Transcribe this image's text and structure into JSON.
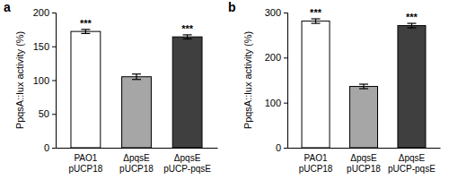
{
  "chart_data": [
    {
      "type": "bar",
      "title": "a",
      "y_label": "PpqsA::lux activity (%)",
      "categories": [
        "PAO1 pUCP18",
        "ΔpqsE pUCP18",
        "ΔpqsE pUCP-pqsE"
      ],
      "values": [
        172,
        105,
        164
      ],
      "errors": [
        3,
        4,
        3
      ],
      "significance": [
        "***",
        null,
        "***"
      ],
      "colors": [
        "#ffffff",
        "#a6a6a6",
        "#3f3f3f"
      ],
      "ylim": [
        0,
        200
      ],
      "yticks": [
        0,
        50,
        100,
        150,
        200
      ]
    },
    {
      "type": "bar",
      "title": "b",
      "y_label": "PpqsA::lux activity (%)",
      "categories": [
        "PAO1 pUCP18",
        "ΔpqsE pUCP18",
        "ΔpqsE pUCP-pqsE"
      ],
      "values": [
        281,
        136,
        271
      ],
      "errors": [
        5,
        5,
        5
      ],
      "significance": [
        "***",
        null,
        "***"
      ],
      "colors": [
        "#ffffff",
        "#a6a6a6",
        "#3f3f3f"
      ],
      "ylim": [
        0,
        300
      ],
      "yticks": [
        0,
        100,
        200,
        300
      ]
    }
  ]
}
